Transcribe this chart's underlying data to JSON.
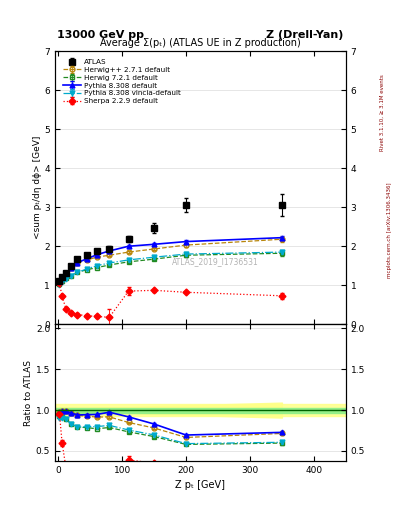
{
  "header_left": "13000 GeV pp",
  "header_right": "Z (Drell-Yan)",
  "title": "Average Σ(pₜ) (ATLAS UE in Z production)",
  "ylabel_main": "<sum pₜ/dη dϕ> [GeV]",
  "ylabel_ratio": "Ratio to ATLAS",
  "xlabel": "Z pₜ [GeV]",
  "right_label_top": "Rivet 3.1.10, ≥ 3.1M events",
  "right_label_bot": "mcplots.cern.ch [arXiv:1306.3436]",
  "watermark": "ATLAS_2019_I1736531",
  "ylim_main": [
    0,
    7
  ],
  "ylim_ratio": [
    0.38,
    2.05
  ],
  "yticks_main": [
    0,
    1,
    2,
    3,
    4,
    5,
    6,
    7
  ],
  "yticks_ratio": [
    0.5,
    1.0,
    1.5,
    2.0
  ],
  "atlas_x": [
    2,
    6,
    12,
    20,
    30,
    45,
    60,
    80,
    110,
    150,
    200,
    350
  ],
  "atlas_y": [
    1.1,
    1.2,
    1.32,
    1.5,
    1.68,
    1.78,
    1.88,
    1.93,
    2.18,
    2.47,
    3.05,
    3.05
  ],
  "atlas_yerr": [
    0.04,
    0.04,
    0.04,
    0.05,
    0.05,
    0.05,
    0.06,
    0.07,
    0.08,
    0.12,
    0.18,
    0.28
  ],
  "herwig271_x": [
    2,
    6,
    12,
    20,
    30,
    45,
    60,
    80,
    110,
    150,
    200,
    350
  ],
  "herwig271_y": [
    1.08,
    1.18,
    1.3,
    1.45,
    1.57,
    1.65,
    1.72,
    1.77,
    1.85,
    1.93,
    2.03,
    2.18
  ],
  "herwig271_yerr": [
    0.01,
    0.01,
    0.01,
    0.01,
    0.01,
    0.01,
    0.01,
    0.02,
    0.02,
    0.03,
    0.04,
    0.06
  ],
  "herwig721_x": [
    2,
    6,
    12,
    20,
    30,
    45,
    60,
    80,
    110,
    150,
    200,
    350
  ],
  "herwig721_y": [
    1.02,
    1.1,
    1.18,
    1.25,
    1.33,
    1.4,
    1.45,
    1.52,
    1.6,
    1.67,
    1.77,
    1.82
  ],
  "herwig721_yerr": [
    0.01,
    0.01,
    0.01,
    0.01,
    0.01,
    0.01,
    0.01,
    0.02,
    0.02,
    0.03,
    0.04,
    0.06
  ],
  "pythia308_x": [
    2,
    6,
    12,
    20,
    30,
    45,
    60,
    80,
    110,
    150,
    200,
    350
  ],
  "pythia308_y": [
    1.08,
    1.18,
    1.3,
    1.45,
    1.58,
    1.68,
    1.78,
    1.88,
    2.0,
    2.05,
    2.12,
    2.22
  ],
  "pythia308_yerr": [
    0.01,
    0.01,
    0.01,
    0.01,
    0.01,
    0.01,
    0.01,
    0.02,
    0.02,
    0.03,
    0.04,
    0.05
  ],
  "pythia308v_x": [
    2,
    6,
    12,
    20,
    30,
    45,
    60,
    80,
    110,
    150,
    200,
    350
  ],
  "pythia308v_y": [
    1.0,
    1.08,
    1.17,
    1.25,
    1.33,
    1.42,
    1.5,
    1.57,
    1.65,
    1.72,
    1.8,
    1.85
  ],
  "pythia308v_yerr": [
    0.01,
    0.01,
    0.01,
    0.01,
    0.01,
    0.01,
    0.01,
    0.02,
    0.02,
    0.03,
    0.04,
    0.06
  ],
  "sherpa229_x": [
    2,
    6,
    12,
    20,
    30,
    45,
    60,
    80,
    110,
    150,
    200,
    350
  ],
  "sherpa229_y": [
    1.05,
    0.72,
    0.4,
    0.3,
    0.25,
    0.22,
    0.2,
    0.18,
    0.85,
    0.87,
    0.82,
    0.73
  ],
  "sherpa229_yerr": [
    0.04,
    0.04,
    0.03,
    0.03,
    0.03,
    0.04,
    0.05,
    0.2,
    0.1,
    0.04,
    0.03,
    0.07
  ],
  "color_atlas": "#000000",
  "color_herwig271": "#b8860b",
  "color_herwig721": "#228b22",
  "color_pythia308": "#0000ff",
  "color_pythia308v": "#00aacc",
  "color_sherpa229": "#ff0000",
  "band_yellow": "#ffff88",
  "band_green": "#88ee88"
}
